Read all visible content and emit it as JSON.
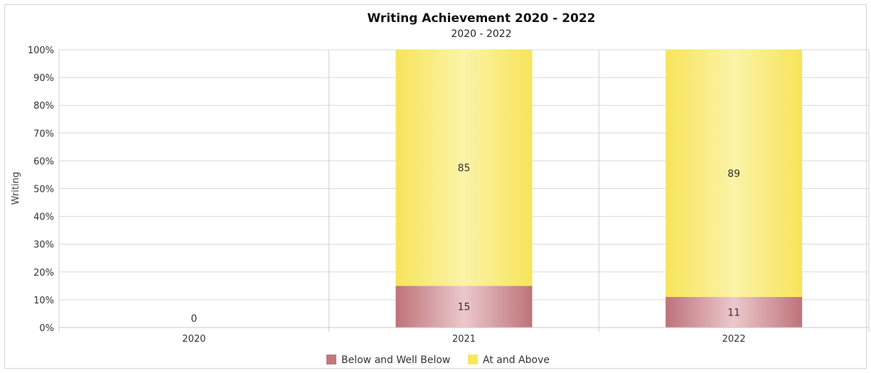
{
  "chart_data": {
    "type": "bar",
    "stacked": true,
    "percent": true,
    "title": "Writing Achievement 2020 - 2022",
    "subtitle": "2020 - 2022",
    "xlabel": "",
    "ylabel": "Writing",
    "ylim": [
      0,
      100
    ],
    "y_ticks": [
      "0%",
      "10%",
      "20%",
      "30%",
      "40%",
      "50%",
      "60%",
      "70%",
      "80%",
      "90%",
      "100%"
    ],
    "categories": [
      "2020",
      "2021",
      "2022"
    ],
    "series": [
      {
        "name": "Below and Well Below",
        "values": [
          0,
          15,
          11
        ],
        "color": "#c1787d"
      },
      {
        "name": "At and Above",
        "values": [
          0,
          85,
          89
        ],
        "color": "#f7e660"
      }
    ],
    "data_labels": [
      {
        "category": "2020",
        "series": "Below and Well Below",
        "text": "0"
      },
      {
        "category": "2021",
        "series": "Below and Well Below",
        "text": "15"
      },
      {
        "category": "2021",
        "series": "At and Above",
        "text": "85"
      },
      {
        "category": "2022",
        "series": "Below and Well Below",
        "text": "11"
      },
      {
        "category": "2022",
        "series": "At and Above",
        "text": "89"
      }
    ],
    "grid": true,
    "legend_position": "bottom-center"
  }
}
